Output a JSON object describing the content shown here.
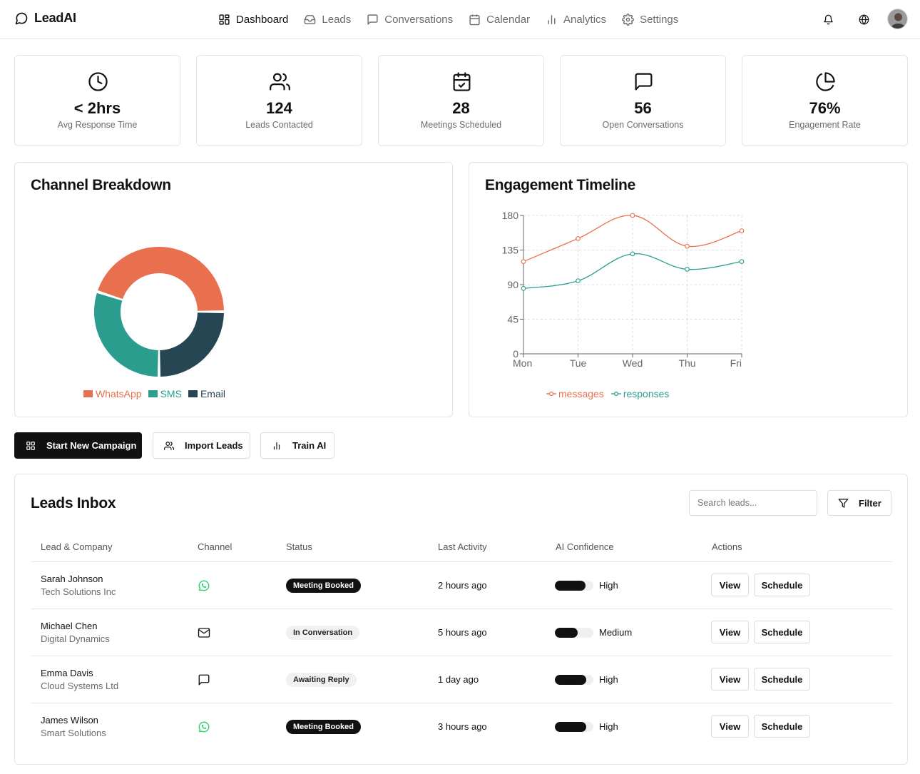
{
  "app": {
    "name": "LeadAI"
  },
  "nav": {
    "items": [
      {
        "label": "Dashboard",
        "icon": "dashboard-icon",
        "active": true
      },
      {
        "label": "Leads",
        "icon": "inbox-icon",
        "active": false
      },
      {
        "label": "Conversations",
        "icon": "chat-icon",
        "active": false
      },
      {
        "label": "Calendar",
        "icon": "calendar-icon",
        "active": false
      },
      {
        "label": "Analytics",
        "icon": "bar-chart-icon",
        "active": false
      },
      {
        "label": "Settings",
        "icon": "gear-icon",
        "active": false
      }
    ]
  },
  "stats": [
    {
      "value": "< 2hrs",
      "label": "Avg Response Time",
      "icon": "clock-icon"
    },
    {
      "value": "124",
      "label": "Leads Contacted",
      "icon": "users-icon"
    },
    {
      "value": "28",
      "label": "Meetings Scheduled",
      "icon": "calendar-check-icon"
    },
    {
      "value": "56",
      "label": "Open Conversations",
      "icon": "chat-icon"
    },
    {
      "value": "76%",
      "label": "Engagement Rate",
      "icon": "pie-icon"
    }
  ],
  "colors": {
    "whatsapp": "#E8704F",
    "sms": "#2A9D8F",
    "email": "#264653",
    "accent": "#111111"
  },
  "chart_data": [
    {
      "type": "pie",
      "title": "Channel Breakdown",
      "categories": [
        "WhatsApp",
        "SMS",
        "Email"
      ],
      "values": [
        45,
        30,
        25
      ],
      "donut": true,
      "legend": "bottom"
    },
    {
      "type": "line",
      "title": "Engagement Timeline",
      "categories": [
        "Mon",
        "Tue",
        "Wed",
        "Thu",
        "Fri"
      ],
      "series": [
        {
          "name": "messages",
          "values": [
            120,
            150,
            180,
            140,
            160
          ]
        },
        {
          "name": "responses",
          "values": [
            85,
            95,
            130,
            110,
            120
          ]
        }
      ],
      "yticks": [
        0,
        45,
        90,
        135,
        180
      ],
      "ylim": [
        0,
        180
      ],
      "grid": true,
      "legend": "bottom"
    }
  ],
  "actions": {
    "start_campaign": "Start New Campaign",
    "import_leads": "Import Leads",
    "train_ai": "Train AI"
  },
  "inbox": {
    "title": "Leads Inbox",
    "search_placeholder": "Search leads...",
    "filter_label": "Filter",
    "columns": [
      "Lead & Company",
      "Channel",
      "Status",
      "Last Activity",
      "AI Confidence",
      "Actions"
    ],
    "rows": [
      {
        "name": "Sarah Johnson",
        "company": "Tech Solutions Inc",
        "channel": "whatsapp-icon",
        "status": "Meeting Booked",
        "status_style": "dark",
        "last_activity": "2 hours ago",
        "confidence_pct": 80,
        "confidence": "High",
        "view": "View",
        "schedule": "Schedule"
      },
      {
        "name": "Michael Chen",
        "company": "Digital Dynamics",
        "channel": "mail-icon",
        "status": "In Conversation",
        "status_style": "light",
        "last_activity": "5 hours ago",
        "confidence_pct": 60,
        "confidence": "Medium",
        "view": "View",
        "schedule": "Schedule"
      },
      {
        "name": "Emma Davis",
        "company": "Cloud Systems Ltd",
        "channel": "chat-icon",
        "status": "Awaiting Reply",
        "status_style": "light",
        "last_activity": "1 day ago",
        "confidence_pct": 82,
        "confidence": "High",
        "view": "View",
        "schedule": "Schedule"
      },
      {
        "name": "James Wilson",
        "company": "Smart Solutions",
        "channel": "whatsapp-icon",
        "status": "Meeting Booked",
        "status_style": "dark",
        "last_activity": "3 hours ago",
        "confidence_pct": 82,
        "confidence": "High",
        "view": "View",
        "schedule": "Schedule"
      }
    ]
  }
}
